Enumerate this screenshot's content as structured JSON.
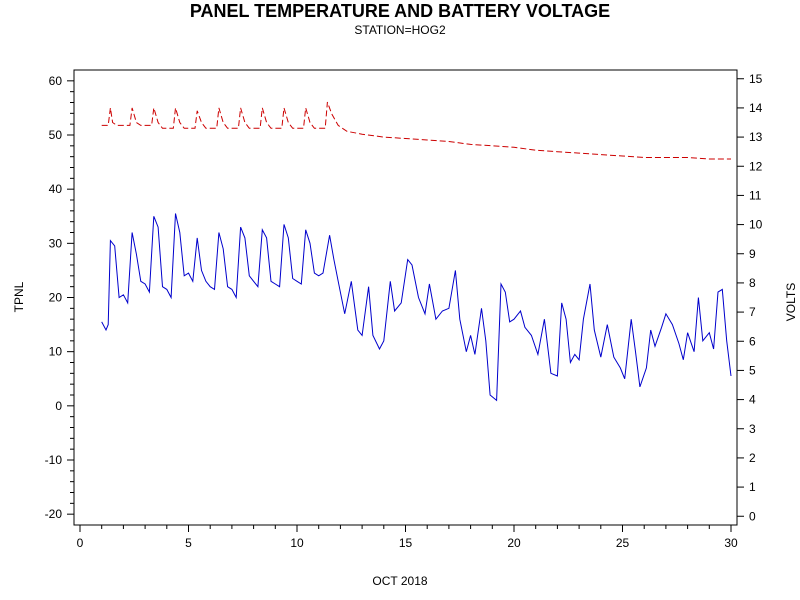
{
  "chart_data": {
    "type": "line",
    "title": "PANEL TEMPERATURE AND BATTERY VOLTAGE",
    "subtitle": "STATION=HOG2",
    "xlabel": "OCT 2018",
    "ylabel_left": "TPNL",
    "ylabel_right": "VOLTS",
    "xlim": [
      0,
      30
    ],
    "ylim_left": [
      -22,
      62
    ],
    "ylim_right": [
      -0.3,
      15.3
    ],
    "x_ticks": [
      0,
      5,
      10,
      15,
      20,
      25,
      30
    ],
    "y_ticks_left": [
      -20,
      -10,
      0,
      10,
      20,
      30,
      40,
      50,
      60
    ],
    "y_ticks_right": [
      0,
      1,
      2,
      3,
      4,
      5,
      6,
      7,
      8,
      9,
      10,
      11,
      12,
      13,
      14,
      15
    ],
    "grid": false,
    "series": [
      {
        "axis": "left",
        "color": "#0000cc",
        "style": "solid",
        "points": [
          [
            1.0,
            15.5
          ],
          [
            1.2,
            14.0
          ],
          [
            1.3,
            15.0
          ],
          [
            1.4,
            30.5
          ],
          [
            1.6,
            29.5
          ],
          [
            1.8,
            20.0
          ],
          [
            2.0,
            20.5
          ],
          [
            2.2,
            19.0
          ],
          [
            2.4,
            32.0
          ],
          [
            2.6,
            28.0
          ],
          [
            2.8,
            23.0
          ],
          [
            3.0,
            22.5
          ],
          [
            3.2,
            21.0
          ],
          [
            3.4,
            35.0
          ],
          [
            3.6,
            33.0
          ],
          [
            3.8,
            22.0
          ],
          [
            4.0,
            21.5
          ],
          [
            4.2,
            20.0
          ],
          [
            4.4,
            35.5
          ],
          [
            4.6,
            32.0
          ],
          [
            4.8,
            24.0
          ],
          [
            5.0,
            24.5
          ],
          [
            5.2,
            23.0
          ],
          [
            5.4,
            31.0
          ],
          [
            5.6,
            25.0
          ],
          [
            5.8,
            23.0
          ],
          [
            6.0,
            22.0
          ],
          [
            6.2,
            21.5
          ],
          [
            6.4,
            32.0
          ],
          [
            6.6,
            29.0
          ],
          [
            6.8,
            22.0
          ],
          [
            7.0,
            21.5
          ],
          [
            7.2,
            20.0
          ],
          [
            7.4,
            33.0
          ],
          [
            7.6,
            31.0
          ],
          [
            7.8,
            24.0
          ],
          [
            8.0,
            23.0
          ],
          [
            8.2,
            22.0
          ],
          [
            8.4,
            32.5
          ],
          [
            8.6,
            31.0
          ],
          [
            8.8,
            23.0
          ],
          [
            9.0,
            22.5
          ],
          [
            9.2,
            22.0
          ],
          [
            9.4,
            33.5
          ],
          [
            9.6,
            31.0
          ],
          [
            9.8,
            23.5
          ],
          [
            10.0,
            23.0
          ],
          [
            10.2,
            22.5
          ],
          [
            10.4,
            32.5
          ],
          [
            10.6,
            30.0
          ],
          [
            10.8,
            24.5
          ],
          [
            11.0,
            24.0
          ],
          [
            11.2,
            24.5
          ],
          [
            11.5,
            31.5
          ],
          [
            11.7,
            27.0
          ],
          [
            11.9,
            23.0
          ],
          [
            12.2,
            17.0
          ],
          [
            12.5,
            23.0
          ],
          [
            12.8,
            14.0
          ],
          [
            13.0,
            13.0
          ],
          [
            13.3,
            22.0
          ],
          [
            13.5,
            13.0
          ],
          [
            13.8,
            10.5
          ],
          [
            14.0,
            12.0
          ],
          [
            14.3,
            23.0
          ],
          [
            14.5,
            17.5
          ],
          [
            14.8,
            19.0
          ],
          [
            15.1,
            27.0
          ],
          [
            15.3,
            26.0
          ],
          [
            15.6,
            20.0
          ],
          [
            15.9,
            17.0
          ],
          [
            16.1,
            22.5
          ],
          [
            16.4,
            16.0
          ],
          [
            16.7,
            17.5
          ],
          [
            17.0,
            18.0
          ],
          [
            17.3,
            25.0
          ],
          [
            17.5,
            16.0
          ],
          [
            17.8,
            10.0
          ],
          [
            18.0,
            13.0
          ],
          [
            18.2,
            9.5
          ],
          [
            18.5,
            18.0
          ],
          [
            18.7,
            12.0
          ],
          [
            18.9,
            2.0
          ],
          [
            19.2,
            1.0
          ],
          [
            19.4,
            22.5
          ],
          [
            19.6,
            21.0
          ],
          [
            19.8,
            15.5
          ],
          [
            20.0,
            16.0
          ],
          [
            20.3,
            17.5
          ],
          [
            20.5,
            14.5
          ],
          [
            20.8,
            13.0
          ],
          [
            21.1,
            9.5
          ],
          [
            21.4,
            16.0
          ],
          [
            21.7,
            6.0
          ],
          [
            22.0,
            5.5
          ],
          [
            22.2,
            19.0
          ],
          [
            22.4,
            16.0
          ],
          [
            22.6,
            8.0
          ],
          [
            22.8,
            9.5
          ],
          [
            23.0,
            8.5
          ],
          [
            23.2,
            16.0
          ],
          [
            23.5,
            22.5
          ],
          [
            23.7,
            14.0
          ],
          [
            24.0,
            9.0
          ],
          [
            24.3,
            15.0
          ],
          [
            24.6,
            9.0
          ],
          [
            24.9,
            7.0
          ],
          [
            25.1,
            5.0
          ],
          [
            25.4,
            16.0
          ],
          [
            25.6,
            10.0
          ],
          [
            25.8,
            3.5
          ],
          [
            26.1,
            7.0
          ],
          [
            26.3,
            14.0
          ],
          [
            26.5,
            11.0
          ],
          [
            26.8,
            14.5
          ],
          [
            27.0,
            17.0
          ],
          [
            27.3,
            15.0
          ],
          [
            27.6,
            11.5
          ],
          [
            27.8,
            8.5
          ],
          [
            28.0,
            13.5
          ],
          [
            28.3,
            10.0
          ],
          [
            28.5,
            20.0
          ],
          [
            28.7,
            12.0
          ],
          [
            29.0,
            13.5
          ],
          [
            29.2,
            10.5
          ],
          [
            29.4,
            21.0
          ],
          [
            29.6,
            21.5
          ],
          [
            29.8,
            12.0
          ],
          [
            30.0,
            5.5
          ]
        ]
      },
      {
        "axis": "right",
        "color": "#cc0000",
        "style": "dashed",
        "points": [
          [
            1.0,
            13.4
          ],
          [
            1.3,
            13.4
          ],
          [
            1.4,
            14.0
          ],
          [
            1.5,
            13.5
          ],
          [
            1.7,
            13.4
          ],
          [
            2.0,
            13.4
          ],
          [
            2.3,
            13.4
          ],
          [
            2.4,
            14.0
          ],
          [
            2.6,
            13.5
          ],
          [
            2.8,
            13.4
          ],
          [
            3.0,
            13.4
          ],
          [
            3.3,
            13.4
          ],
          [
            3.4,
            14.0
          ],
          [
            3.6,
            13.5
          ],
          [
            3.8,
            13.3
          ],
          [
            4.0,
            13.3
          ],
          [
            4.3,
            13.3
          ],
          [
            4.4,
            14.0
          ],
          [
            4.6,
            13.5
          ],
          [
            4.8,
            13.3
          ],
          [
            5.0,
            13.3
          ],
          [
            5.3,
            13.3
          ],
          [
            5.4,
            13.9
          ],
          [
            5.6,
            13.5
          ],
          [
            5.8,
            13.3
          ],
          [
            6.0,
            13.3
          ],
          [
            6.3,
            13.3
          ],
          [
            6.4,
            14.0
          ],
          [
            6.6,
            13.5
          ],
          [
            6.8,
            13.3
          ],
          [
            7.0,
            13.3
          ],
          [
            7.3,
            13.3
          ],
          [
            7.4,
            14.0
          ],
          [
            7.6,
            13.5
          ],
          [
            7.8,
            13.3
          ],
          [
            8.0,
            13.3
          ],
          [
            8.3,
            13.3
          ],
          [
            8.4,
            14.0
          ],
          [
            8.6,
            13.5
          ],
          [
            8.8,
            13.3
          ],
          [
            9.0,
            13.3
          ],
          [
            9.3,
            13.3
          ],
          [
            9.4,
            14.0
          ],
          [
            9.6,
            13.5
          ],
          [
            9.8,
            13.3
          ],
          [
            10.0,
            13.3
          ],
          [
            10.3,
            13.3
          ],
          [
            10.4,
            14.0
          ],
          [
            10.6,
            13.5
          ],
          [
            10.8,
            13.3
          ],
          [
            11.0,
            13.3
          ],
          [
            11.3,
            13.3
          ],
          [
            11.4,
            14.2
          ],
          [
            11.6,
            13.8
          ],
          [
            11.9,
            13.4
          ],
          [
            12.3,
            13.2
          ],
          [
            13.0,
            13.1
          ],
          [
            14.0,
            13.0
          ],
          [
            15.0,
            12.95
          ],
          [
            16.0,
            12.9
          ],
          [
            17.0,
            12.85
          ],
          [
            18.0,
            12.75
          ],
          [
            19.0,
            12.7
          ],
          [
            20.0,
            12.65
          ],
          [
            21.0,
            12.55
          ],
          [
            22.0,
            12.5
          ],
          [
            23.0,
            12.45
          ],
          [
            24.0,
            12.4
          ],
          [
            25.0,
            12.35
          ],
          [
            26.0,
            12.3
          ],
          [
            27.0,
            12.3
          ],
          [
            28.0,
            12.3
          ],
          [
            29.0,
            12.25
          ],
          [
            30.0,
            12.25
          ]
        ]
      }
    ]
  }
}
